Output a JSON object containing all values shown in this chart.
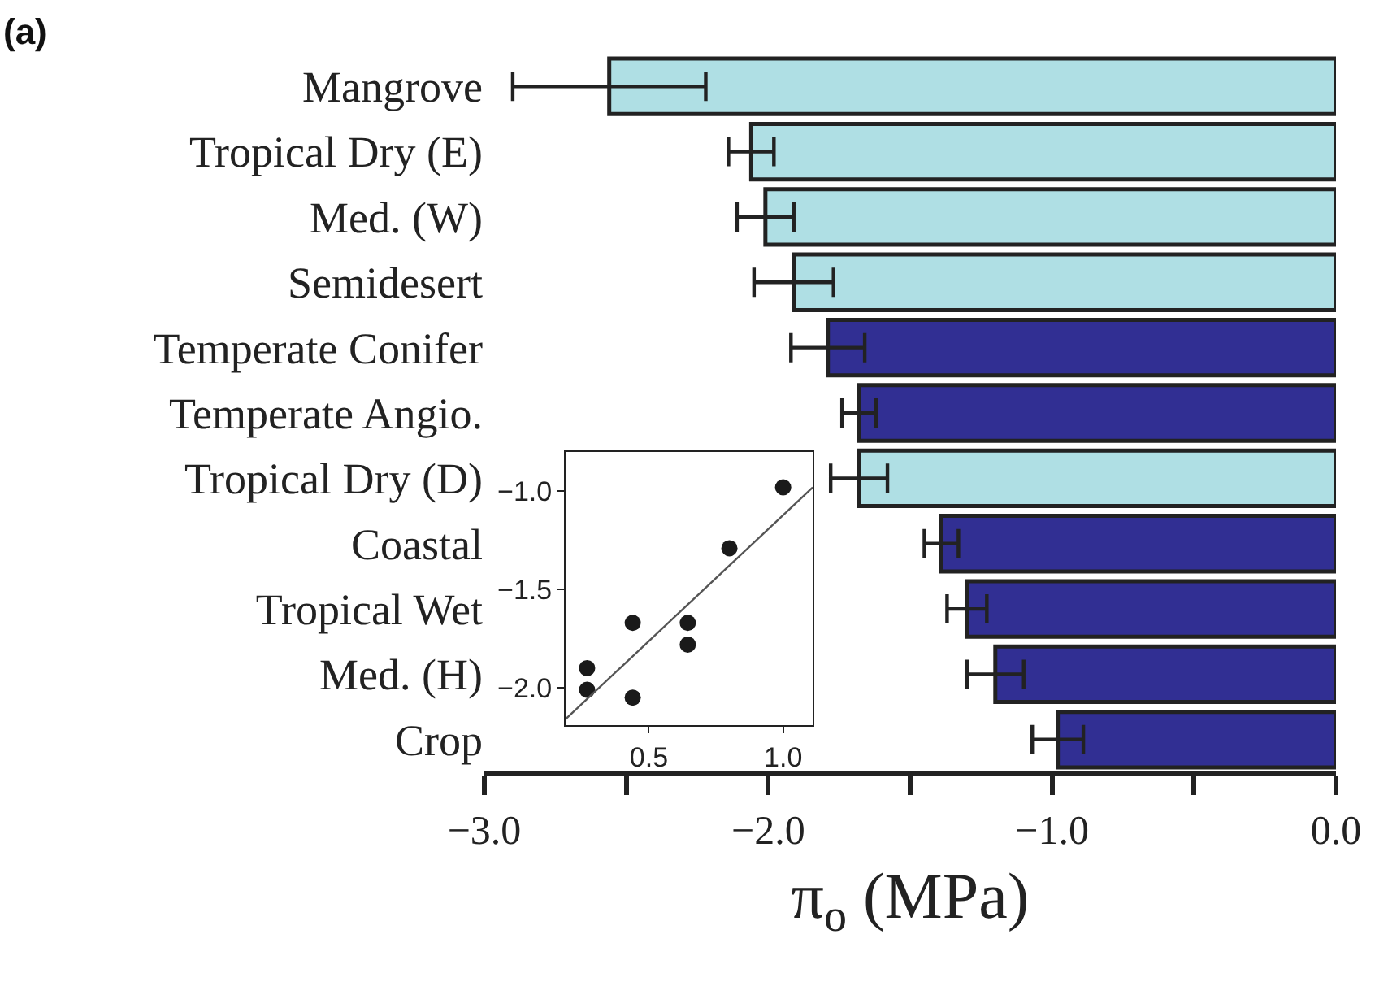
{
  "chart_data": [
    {
      "type": "bar",
      "orientation": "horizontal",
      "annotations": [
        "(a)"
      ],
      "xlabel": "π$_{o}$ (MPa)",
      "categories": [
        "Mangrove",
        "Tropical Dry (E)",
        "Med. (W)",
        "Semidesert",
        "Temperate Conifer",
        "Temperate Angio.",
        "Tropical Dry (D)",
        "Coastal",
        "Tropical Wet",
        "Med. (H)",
        "Crop"
      ],
      "values": [
        -2.56,
        -2.06,
        -2.01,
        -1.91,
        -1.79,
        -1.68,
        -1.68,
        -1.39,
        -1.3,
        -1.2,
        -0.98
      ],
      "errors": [
        0.34,
        0.08,
        0.1,
        0.14,
        0.13,
        0.06,
        0.1,
        0.06,
        0.07,
        0.1,
        0.09
      ],
      "colors": [
        "#afdfe4",
        "#afdfe4",
        "#afdfe4",
        "#afdfe4",
        "#312f93",
        "#312f93",
        "#afdfe4",
        "#312f93",
        "#312f93",
        "#312f93",
        "#312f93"
      ],
      "xlim": [
        -3,
        0
      ],
      "xticks": [
        {
          "value": -3,
          "label": "−3.0"
        },
        {
          "value": -2.5,
          "label": null
        },
        {
          "value": -2,
          "label": "−2.0"
        },
        {
          "value": -1.5,
          "label": null
        },
        {
          "value": -1,
          "label": "−1.0"
        },
        {
          "value": -0.5,
          "label": null
        },
        {
          "value": 0,
          "label": "0.0"
        }
      ],
      "grid": false
    },
    {
      "type": "scatter",
      "grid": false,
      "series": [
        {
          "type": "scatter",
          "marker": "circle",
          "color": "#1a1a1a",
          "x": [
            0.27,
            0.27,
            0.44,
            0.44,
            0.645,
            0.645,
            0.8,
            1.0
          ],
          "values": [
            -1.9,
            -2.01,
            -1.67,
            -2.05,
            -1.67,
            -1.78,
            -1.29,
            -0.98
          ]
        },
        {
          "type": "line",
          "marker": "none",
          "color": "#555555",
          "x": [
            0.19,
            1.11
          ],
          "values": [
            -2.16,
            -0.98
          ]
        }
      ],
      "xlim": [
        0.19,
        1.11
      ],
      "ylim": [
        -2.19,
        -0.8
      ],
      "xticks": [
        {
          "value": 0.5,
          "label": "0.5"
        },
        {
          "value": 1,
          "label": "1.0"
        }
      ],
      "yticks": [
        {
          "value": -1,
          "label": "−1.0"
        },
        {
          "value": -1.5,
          "label": "−1.5"
        },
        {
          "value": -2,
          "label": "−2.0"
        }
      ]
    }
  ]
}
